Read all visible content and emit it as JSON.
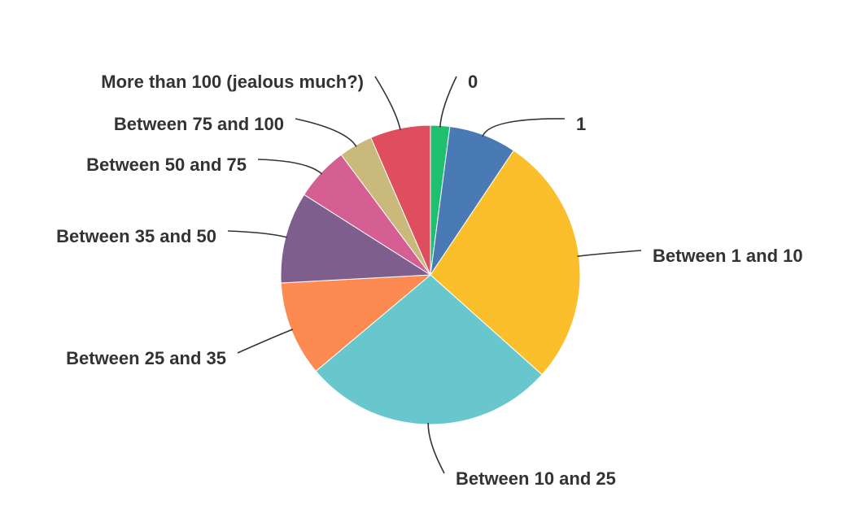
{
  "chart_data": {
    "type": "pie",
    "title": "",
    "start_angle_deg": 0,
    "direction": "clockwise",
    "slices": [
      {
        "label": "0",
        "value": 2.1,
        "color": "#1fbf70"
      },
      {
        "label": "1",
        "value": 7.4,
        "color": "#4a7ab3"
      },
      {
        "label": "Between 1 and 10",
        "value": 27.6,
        "color": "#fbbf2b"
      },
      {
        "label": "Between 10 and 25",
        "value": 27.6,
        "color": "#67c7cd"
      },
      {
        "label": "Between 25 and 35",
        "value": 10.4,
        "color": "#fd8a51"
      },
      {
        "label": "Between 35 and 50",
        "value": 10.0,
        "color": "#7e5e8d"
      },
      {
        "label": "Between 50 and 75",
        "value": 5.9,
        "color": "#d55f93"
      },
      {
        "label": "Between 75 and 100",
        "value": 3.7,
        "color": "#c9b97a"
      },
      {
        "label": "More than 100 (jealous much?)",
        "value": 6.6,
        "color": "#df4e5f"
      }
    ]
  }
}
